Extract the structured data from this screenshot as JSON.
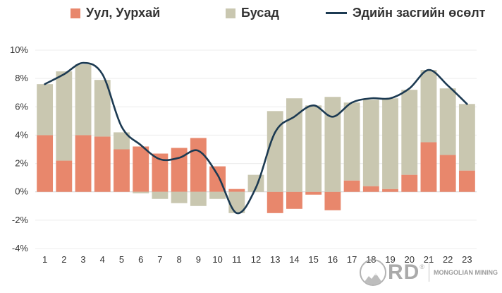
{
  "chart_data": {
    "type": "bar",
    "stacked": true,
    "categories": [
      "1",
      "2",
      "3",
      "4",
      "5",
      "6",
      "7",
      "8",
      "9",
      "10",
      "11",
      "12",
      "13",
      "14",
      "15",
      "16",
      "17",
      "18",
      "19",
      "20",
      "21",
      "22",
      "23"
    ],
    "series": [
      {
        "name": "Уул, Уурхай",
        "kind": "bar",
        "color": "#e8876c",
        "values": [
          4.0,
          2.2,
          4.0,
          3.9,
          3.0,
          3.2,
          2.7,
          3.1,
          3.8,
          1.8,
          0.2,
          0.0,
          -1.5,
          -1.2,
          -0.2,
          -1.3,
          0.8,
          0.4,
          0.2,
          1.2,
          3.5,
          2.6,
          1.5
        ]
      },
      {
        "name": "Бусад",
        "kind": "bar",
        "color": "#c9c7b0",
        "values": [
          3.6,
          6.3,
          5.0,
          4.0,
          1.2,
          -0.1,
          -0.5,
          -0.8,
          -1.0,
          -0.5,
          -1.5,
          1.2,
          5.7,
          6.6,
          6.1,
          6.7,
          5.5,
          6.1,
          6.4,
          6.0,
          5.1,
          4.7,
          4.7
        ]
      },
      {
        "name": "Эдийн засгийн өсөлт",
        "kind": "line",
        "color": "#1c3a52",
        "values": [
          7.6,
          8.3,
          9.1,
          8.3,
          4.6,
          3.3,
          2.3,
          2.4,
          2.9,
          1.2,
          -1.5,
          0.3,
          4.2,
          5.3,
          6.1,
          5.3,
          6.3,
          6.6,
          6.6,
          7.3,
          8.6,
          7.5,
          6.2
        ]
      }
    ],
    "ylim": [
      -4,
      10
    ],
    "yticks": [
      -4,
      -2,
      0,
      2,
      4,
      6,
      8,
      10
    ],
    "ytick_labels": [
      "-4%",
      "-2%",
      "0%",
      "2%",
      "4%",
      "6%",
      "8%",
      "10%"
    ],
    "grid": true,
    "legend": "top"
  },
  "watermark": {
    "logo_text": "RD",
    "mark": "®",
    "caption": "MONGOLIAN MINING",
    "icon": "mountain-icon"
  }
}
